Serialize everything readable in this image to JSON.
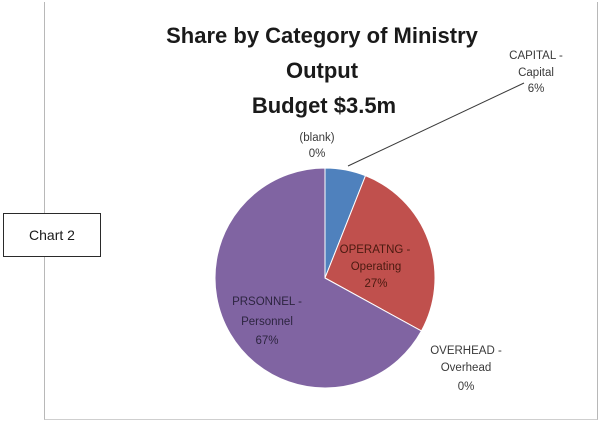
{
  "side_label": "Chart 2",
  "chart_data": {
    "type": "pie",
    "title_lines": [
      "Share by Category of Ministry",
      "Output",
      "Budget $3.5m"
    ],
    "colors": {
      "capital": "#4f81bd",
      "operating": "#c0504d",
      "overhead": "#9bbb59",
      "personnel": "#8064a2",
      "blank": "#4bacc6"
    },
    "slices": [
      {
        "key": "blank",
        "label_lines": [
          "(blank)",
          "0%"
        ],
        "value": 0
      },
      {
        "key": "capital",
        "label_lines": [
          "CAPITAL -",
          "Capital",
          "6%"
        ],
        "value": 6
      },
      {
        "key": "operating",
        "label_lines": [
          "OPERATNG -",
          "Operating",
          "27%"
        ],
        "value": 27
      },
      {
        "key": "overhead",
        "label_lines": [
          "OVERHEAD -",
          "Overhead",
          "0%"
        ],
        "value": 0
      },
      {
        "key": "personnel",
        "label_lines": [
          "PRSONNEL -",
          "Personnel",
          "67%"
        ],
        "value": 67
      }
    ]
  }
}
